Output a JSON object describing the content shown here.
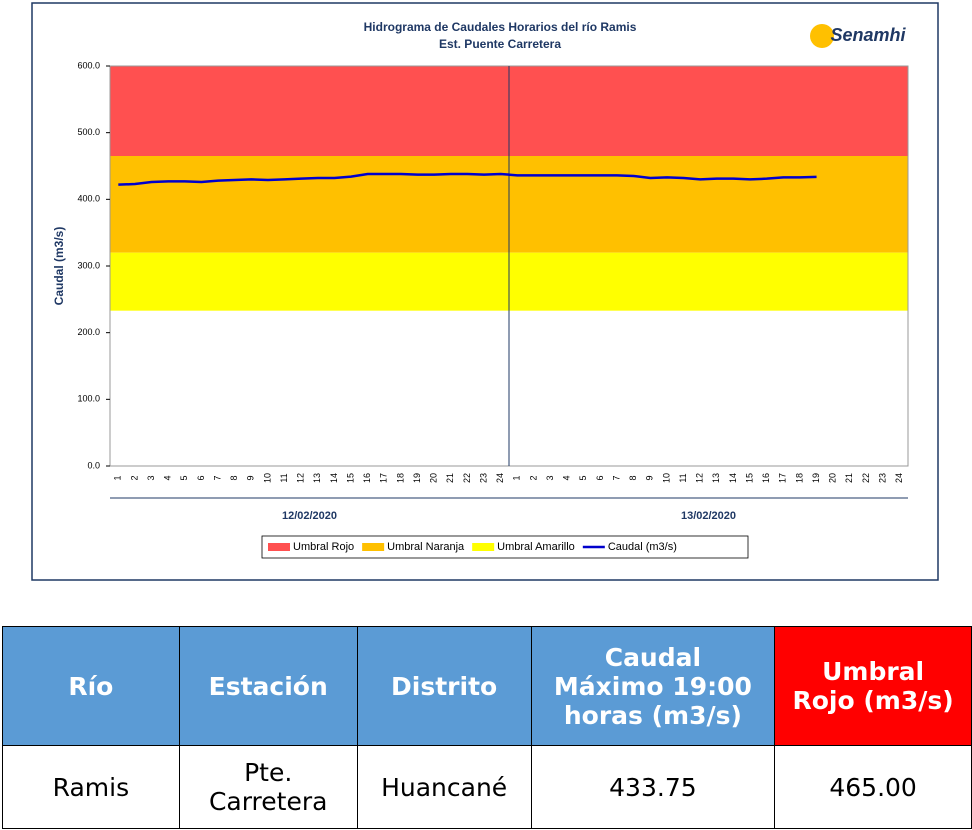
{
  "chart_data": {
    "type": "line",
    "title": "Hidrograma de Caudales Horarios del río Ramis",
    "subtitle": "Est. Puente Carretera",
    "logo": "Senamhi",
    "y_label": "Caudal (m3/s)",
    "categories": [
      "1",
      "2",
      "3",
      "4",
      "5",
      "6",
      "7",
      "8",
      "9",
      "10",
      "11",
      "12",
      "13",
      "14",
      "15",
      "16",
      "17",
      "18",
      "19",
      "20",
      "21",
      "22",
      "23",
      "24",
      "1",
      "2",
      "3",
      "4",
      "5",
      "6",
      "7",
      "8",
      "9",
      "10",
      "11",
      "12",
      "13",
      "14",
      "15",
      "16",
      "17",
      "18",
      "19",
      "20",
      "21",
      "22",
      "23",
      "24"
    ],
    "groups": [
      "12/02/2020",
      "13/02/2020"
    ],
    "ylim": [
      0,
      600
    ],
    "yticks": [
      {
        "value": 0,
        "label": "0.0"
      },
      {
        "value": 100,
        "label": "100.0"
      },
      {
        "value": 200,
        "label": "200.0"
      },
      {
        "value": 300,
        "label": "300.0"
      },
      {
        "value": 400,
        "label": "400.0"
      },
      {
        "value": 500,
        "label": "500.0"
      },
      {
        "value": 600,
        "label": "600.0"
      }
    ],
    "thresholds": [
      {
        "name": "Umbral Rojo",
        "color": "#ff5050",
        "value": 465
      },
      {
        "name": "Umbral Naranja",
        "color": "#ffc000",
        "value": 320
      },
      {
        "name": "Umbral Amarillo",
        "color": "#ffff00",
        "value": 233
      }
    ],
    "series": [
      {
        "name": "Caudal (m3/s)",
        "color": "#0000cc",
        "values": [
          422,
          423,
          426,
          427,
          427,
          426,
          428,
          429,
          430,
          429,
          430,
          431,
          432,
          432,
          434,
          438,
          438,
          438,
          437,
          437,
          438,
          438,
          437,
          438,
          436,
          436,
          436,
          436,
          436,
          436,
          436,
          435,
          432,
          433,
          432,
          430,
          431,
          431,
          430,
          431,
          433,
          433,
          433.75,
          null,
          null,
          null,
          null,
          null
        ]
      }
    ]
  },
  "table": {
    "header": [
      "Río",
      "Estación",
      "Distrito",
      "Caudal Máximo 19:00 horas (m3/s)",
      "Umbral Rojo (m3/s)"
    ],
    "rows": [
      [
        "Ramis",
        "Pte. Carretera",
        "Huancané",
        "433.75",
        "465.00"
      ]
    ]
  }
}
